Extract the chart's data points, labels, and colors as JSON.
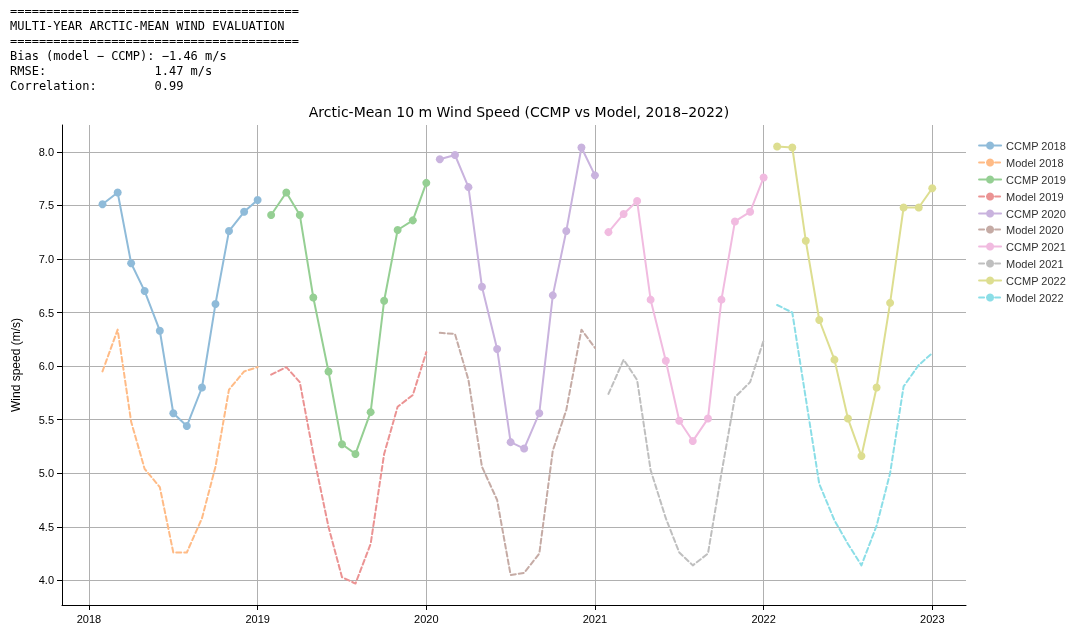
{
  "chart_data": {
    "type": "line",
    "title": "Arctic-Mean 10 m Wind Speed (CCMP vs Model, 2018–2022)",
    "ylabel": "Wind speed (m/s)",
    "annotations": [
      "========================================",
      "MULTI-YEAR ARCTIC-MEAN WIND EVALUATION",
      "========================================",
      "Bias (model − CCMP): −1.46 m/s",
      "RMSE:               1.47 m/s",
      "Correlation:        0.99"
    ],
    "xlim": [
      2017.84,
      2023.2
    ],
    "xticks": [
      2018,
      2019,
      2020,
      2021,
      2022,
      2023
    ],
    "ylim": [
      3.77,
      8.25
    ],
    "yticks": [
      {
        "value": 4,
        "label": "4.0"
      },
      4.5,
      {
        "value": 5,
        "label": "5.0"
      },
      5.5,
      {
        "value": 6,
        "label": "6.0"
      },
      6.5,
      {
        "value": 7,
        "label": "7.0"
      },
      7.5,
      {
        "value": 8,
        "label": "8.0"
      }
    ],
    "grid": true,
    "legend": "right",
    "series": [
      {
        "name": "CCMP 2018",
        "color": "#8fbbd9",
        "marker": "circle",
        "line_style": "solid",
        "x": [
          2018.08,
          2018.17,
          2018.25,
          2018.33,
          2018.42,
          2018.5,
          2018.58,
          2018.67,
          2018.75,
          2018.83,
          2018.92,
          2019
        ],
        "values": [
          7.51,
          7.62,
          6.96,
          6.7,
          6.33,
          5.56,
          5.44,
          5.8,
          6.58,
          7.26,
          7.44,
          7.55
        ]
      },
      {
        "name": "Model 2018",
        "color": "#ffbb86",
        "marker": "none",
        "line_style": "dashed",
        "x": [
          2018.08,
          2018.17,
          2018.25,
          2018.33,
          2018.42,
          2018.5,
          2018.58,
          2018.67,
          2018.75,
          2018.83,
          2018.92,
          2019
        ],
        "values": [
          5.95,
          6.34,
          5.48,
          5.04,
          4.87,
          4.26,
          4.26,
          4.58,
          5.06,
          5.78,
          5.95,
          5.99
        ]
      },
      {
        "name": "CCMP 2019",
        "color": "#95cf93",
        "marker": "circle",
        "line_style": "solid",
        "x": [
          2019.08,
          2019.17,
          2019.25,
          2019.33,
          2019.42,
          2019.5,
          2019.58,
          2019.67,
          2019.75,
          2019.83,
          2019.92,
          2020
        ],
        "values": [
          7.41,
          7.62,
          7.41,
          6.64,
          5.95,
          5.27,
          5.18,
          5.57,
          6.61,
          7.27,
          7.36,
          7.71
        ]
      },
      {
        "name": "Model 2019",
        "color": "#eb9393",
        "marker": "none",
        "line_style": "dashed",
        "x": [
          2019.08,
          2019.17,
          2019.25,
          2019.33,
          2019.42,
          2019.5,
          2019.58,
          2019.67,
          2019.75,
          2019.83,
          2019.92,
          2020
        ],
        "values": [
          5.92,
          5.99,
          5.85,
          5.18,
          4.5,
          4.03,
          3.97,
          4.34,
          5.18,
          5.62,
          5.73,
          6.13
        ]
      },
      {
        "name": "CCMP 2020",
        "color": "#c9b3de",
        "marker": "circle",
        "line_style": "solid",
        "x": [
          2020.08,
          2020.17,
          2020.25,
          2020.33,
          2020.42,
          2020.5,
          2020.58,
          2020.67,
          2020.75,
          2020.83,
          2020.92,
          2021
        ],
        "values": [
          7.93,
          7.97,
          7.67,
          6.74,
          6.16,
          5.29,
          5.23,
          5.56,
          6.66,
          7.26,
          8.04,
          7.78
        ]
      },
      {
        "name": "Model 2020",
        "color": "#c5aba5",
        "marker": "none",
        "line_style": "dashed",
        "x": [
          2020.08,
          2020.17,
          2020.25,
          2020.33,
          2020.42,
          2020.5,
          2020.58,
          2020.67,
          2020.75,
          2020.83,
          2020.92,
          2021
        ],
        "values": [
          6.31,
          6.3,
          5.87,
          5.06,
          4.75,
          4.05,
          4.07,
          4.25,
          5.21,
          5.59,
          6.34,
          6.17
        ]
      },
      {
        "name": "CCMP 2021",
        "color": "#f1bbe0",
        "marker": "circle",
        "line_style": "solid",
        "x": [
          2021.08,
          2021.17,
          2021.25,
          2021.33,
          2021.42,
          2021.5,
          2021.58,
          2021.67,
          2021.75,
          2021.83,
          2021.92,
          2022
        ],
        "values": [
          7.25,
          7.42,
          7.54,
          6.62,
          6.05,
          5.49,
          5.3,
          5.51,
          6.62,
          7.35,
          7.44,
          7.76
        ]
      },
      {
        "name": "Model 2021",
        "color": "#bfbfbf",
        "marker": "none",
        "line_style": "dashed",
        "x": [
          2021.08,
          2021.17,
          2021.25,
          2021.33,
          2021.42,
          2021.5,
          2021.58,
          2021.67,
          2021.75,
          2021.83,
          2021.92,
          2022
        ],
        "values": [
          5.74,
          6.06,
          5.87,
          5.03,
          4.58,
          4.26,
          4.14,
          4.25,
          5.0,
          5.71,
          5.85,
          6.24
        ]
      },
      {
        "name": "CCMP 2022",
        "color": "#ddde90",
        "marker": "circle",
        "line_style": "solid",
        "x": [
          2022.08,
          2022.17,
          2022.25,
          2022.33,
          2022.42,
          2022.5,
          2022.58,
          2022.67,
          2022.75,
          2022.83,
          2022.92,
          2023
        ],
        "values": [
          8.05,
          8.04,
          7.17,
          6.43,
          6.06,
          5.51,
          5.16,
          5.8,
          6.59,
          7.48,
          7.48,
          7.66
        ]
      },
      {
        "name": "Model 2022",
        "color": "#8bdee7",
        "marker": "none",
        "line_style": "dashed",
        "x": [
          2022.08,
          2022.17,
          2022.25,
          2022.33,
          2022.42,
          2022.5,
          2022.58,
          2022.67,
          2022.75,
          2022.83,
          2022.92,
          2023
        ],
        "values": [
          6.57,
          6.5,
          5.7,
          4.9,
          4.56,
          4.34,
          4.14,
          4.51,
          5.0,
          5.81,
          6.01,
          6.12
        ]
      }
    ]
  }
}
